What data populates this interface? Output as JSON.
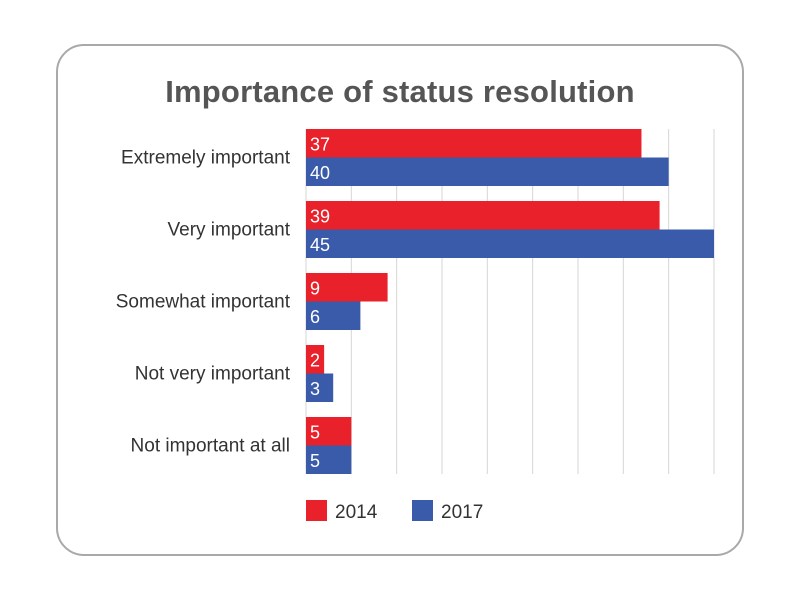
{
  "chart_data": {
    "type": "bar",
    "orientation": "horizontal",
    "title": "Importance of status resolution",
    "xlabel": "",
    "ylabel": "",
    "categories": [
      "Extremely important",
      "Very important",
      "Somewhat important",
      "Not very important",
      "Not important at all"
    ],
    "series": [
      {
        "name": "2014",
        "color": "#e8212b",
        "values": [
          37,
          39,
          9,
          2,
          5
        ]
      },
      {
        "name": "2017",
        "color": "#3a5ba9",
        "values": [
          40,
          45,
          6,
          3,
          5
        ]
      }
    ],
    "xlim": [
      0,
      45
    ],
    "grid": true,
    "legend": "bottom",
    "data_labels": true
  }
}
